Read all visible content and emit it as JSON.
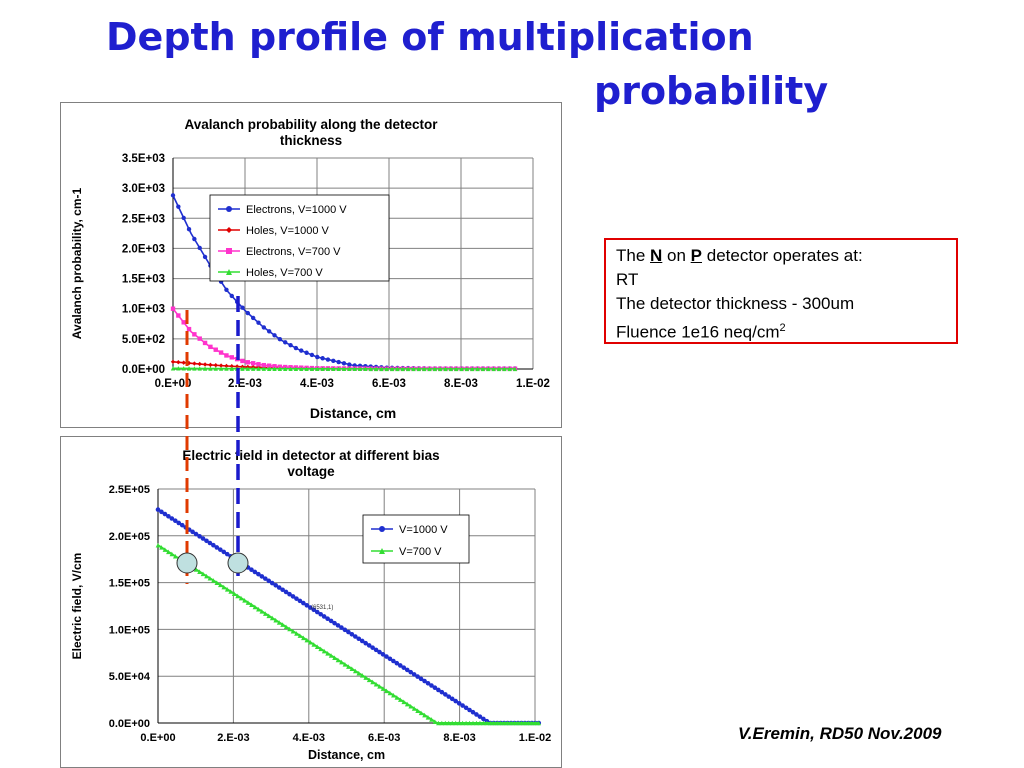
{
  "slide": {
    "title_line1": "Depth profile of multiplication",
    "title_line2": "probability",
    "info": {
      "line1_pre": "The ",
      "line1_n": "N",
      "line1_mid": " on ",
      "line1_p": "P",
      "line1_post": " detector operates at:",
      "line2": "RT",
      "line3": "The detector thickness - 300um",
      "line4_text": "Fluence 1e16 neq/cm",
      "line4_sup": "2"
    },
    "credit": "V.Eremin, RD50 Nov.2009",
    "colors": {
      "title": "#1f1fcf",
      "info_border": "#e00000",
      "marker_red": "#e03a00",
      "marker_blue": "#1a1acc",
      "circle_fill": "#bfe0e0"
    }
  },
  "chart_data": [
    {
      "type": "line",
      "title": "Avalanch probability along the detector thickness",
      "xlabel": "Distance, cm",
      "ylabel": "Avalanch probability, cm-1",
      "xlim": [
        0,
        0.01
      ],
      "ylim": [
        0,
        3500
      ],
      "x_ticks": [
        0,
        0.002,
        0.004,
        0.006,
        0.008,
        0.01
      ],
      "x_tick_labels": [
        "0.E+00",
        "2.E-03",
        "4.E-03",
        "6.E-03",
        "8.E-03",
        "1.E-02"
      ],
      "y_ticks": [
        0,
        500,
        1000,
        1500,
        2000,
        2500,
        3000,
        3500
      ],
      "y_tick_labels": [
        "0.0E+00",
        "5.0E+02",
        "1.0E+03",
        "1.5E+03",
        "2.0E+03",
        "2.5E+03",
        "3.0E+03",
        "3.5E+03"
      ],
      "grid": true,
      "legend_position": "top-center",
      "series": [
        {
          "name": "Electrons, V=1000 V",
          "color": "#1f2fcf",
          "marker": "circle",
          "x": [
            0,
            0.0005,
            0.001,
            0.0015,
            0.002,
            0.0025,
            0.003,
            0.0035,
            0.004,
            0.005,
            0.006,
            0.007,
            0.008,
            0.009,
            0.0095
          ],
          "y": [
            2880,
            2250,
            1750,
            1300,
            970,
            700,
            480,
            320,
            200,
            60,
            20,
            10,
            10,
            10,
            10
          ]
        },
        {
          "name": "Holes, V=1000 V",
          "color": "#e00000",
          "marker": "diamond",
          "x": [
            0,
            0.0005,
            0.001,
            0.0015,
            0.002,
            0.003,
            0.004,
            0.005,
            0.006,
            0.008,
            0.0095
          ],
          "y": [
            120,
            95,
            70,
            50,
            35,
            15,
            8,
            5,
            5,
            5,
            5
          ]
        },
        {
          "name": "Electrons, V=700 V",
          "color": "#ff33cc",
          "marker": "square",
          "x": [
            0,
            0.0005,
            0.001,
            0.0015,
            0.002,
            0.0025,
            0.003,
            0.004,
            0.005,
            0.006,
            0.008,
            0.0095
          ],
          "y": [
            1000,
            620,
            380,
            220,
            120,
            65,
            35,
            12,
            8,
            5,
            5,
            5
          ]
        },
        {
          "name": "Holes, V=700 V",
          "color": "#33dd33",
          "marker": "triangle",
          "x": [
            0,
            0.001,
            0.002,
            0.004,
            0.006,
            0.008,
            0.0095
          ],
          "y": [
            12,
            8,
            5,
            3,
            2,
            2,
            2
          ]
        }
      ]
    },
    {
      "type": "line",
      "title": "Electric field in detector at different bias voltage",
      "xlabel": "Distance, cm",
      "ylabel": "Electric field, V/cm",
      "xlim": [
        0,
        0.01
      ],
      "ylim": [
        0,
        250000
      ],
      "x_ticks": [
        0,
        0.002,
        0.004,
        0.006,
        0.008,
        0.01
      ],
      "x_tick_labels": [
        "0.E+00",
        "2.E-03",
        "4.E-03",
        "6.E-03",
        "8.E-03",
        "1.E-02"
      ],
      "y_ticks": [
        0,
        50000,
        100000,
        150000,
        200000,
        250000
      ],
      "y_tick_labels": [
        "0.0E+00",
        "5.0E+04",
        "1.0E+05",
        "1.5E+05",
        "2.0E+05",
        "2.5E+05"
      ],
      "grid": true,
      "legend_position": "top-right",
      "annotation": "(6531,1)",
      "series": [
        {
          "name": "V=1000 V",
          "color": "#1f2fcf",
          "marker": "circle",
          "x": [
            0,
            0.0088,
            0.0101
          ],
          "y": [
            228000,
            0,
            0
          ]
        },
        {
          "name": "V=700 V",
          "color": "#33dd33",
          "marker": "triangle",
          "x": [
            0,
            0.0074,
            0.0101
          ],
          "y": [
            190000,
            0,
            0
          ]
        }
      ]
    }
  ]
}
